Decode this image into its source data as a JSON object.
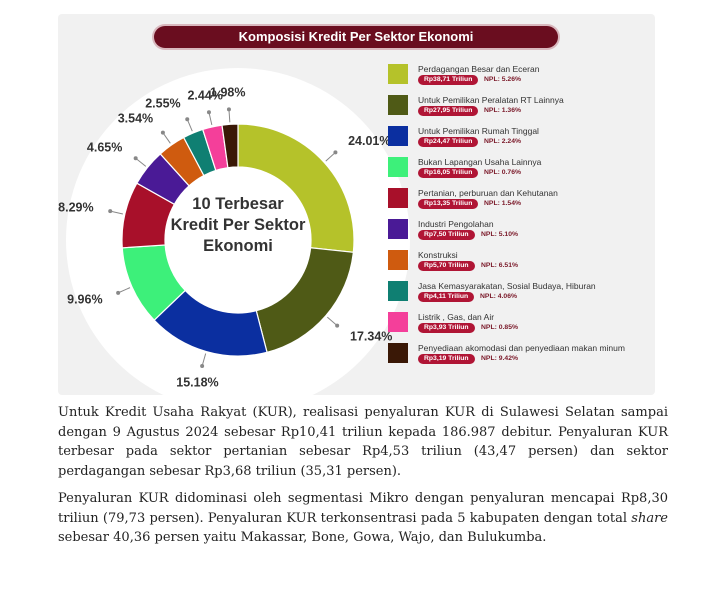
{
  "chart_data": {
    "type": "pie",
    "title": "Komposisi Kredit Per Sektor Ekonomi",
    "center_label": [
      "10 Terbesar",
      "Kredit Per Sektor",
      "Ekonomi"
    ],
    "slices": [
      {
        "label": "Perdagangan Besar dan Eceran",
        "value": 24.01,
        "display": "24.01%",
        "amount": "Rp38,71 Triliun",
        "npl": "NPL: 5.26%",
        "color": "#b5c22a"
      },
      {
        "label": "Untuk Pemilikan Peralatan RT Lainnya",
        "value": 17.34,
        "display": "17.34%",
        "amount": "Rp27,95 Triliun",
        "npl": "NPL: 1.36%",
        "color": "#4f5a16"
      },
      {
        "label": "Untuk Pemilikan Rumah Tinggal",
        "value": 15.18,
        "display": "15.18%",
        "amount": "Rp24,47 Triliun",
        "npl": "NPL: 2.24%",
        "color": "#0b2fa0"
      },
      {
        "label": "Bukan Lapangan Usaha Lainnya",
        "value": 9.96,
        "display": "9.96%",
        "amount": "Rp16,05 Triliun",
        "npl": "NPL: 0.76%",
        "color": "#3df07a"
      },
      {
        "label": "Pertanian, perburuan dan Kehutanan",
        "value": 8.29,
        "display": "8.29%",
        "amount": "Rp13,35 Triliun",
        "npl": "NPL: 1.54%",
        "color": "#a8102a"
      },
      {
        "label": "Industri Pengolahan",
        "value": 4.65,
        "display": "4.65%",
        "amount": "Rp7,50 Triliun",
        "npl": "NPL: 5.10%",
        "color": "#4a1a96"
      },
      {
        "label": "Konstruksi",
        "value": 3.54,
        "display": "3.54%",
        "amount": "Rp5,70 Triliun",
        "npl": "NPL: 6.51%",
        "color": "#cf5b0f"
      },
      {
        "label": "Jasa Kemasyarakatan, Sosial Budaya, Hiburan",
        "value": 2.55,
        "display": "2.55%",
        "amount": "Rp4,11 Triliun",
        "npl": "NPL: 4.06%",
        "color": "#0f7f72"
      },
      {
        "label": "Listrik , Gas, dan Air",
        "value": 2.44,
        "display": "2.44%",
        "amount": "Rp3,93 Triliun",
        "npl": "NPL: 0.85%",
        "color": "#f43f9a"
      },
      {
        "label": "Penyediaan akomodasi dan penyediaan makan minum",
        "value": 1.98,
        "display": "1.98%",
        "amount": "Rp3,19 Triliun",
        "npl": "NPL: 9.42%",
        "color": "#3a1806"
      }
    ]
  },
  "body": {
    "p1": "Untuk Kredit Usaha Rakyat (KUR), realisasi penyaluran KUR di Sulawesi Selatan sampai dengan 9 Agustus 2024 sebesar Rp10,41 triliun kepada 186.987 debitur. Penyaluran KUR terbesar pada sektor pertanian sebesar Rp4,53 triliun (43,47 persen) dan sektor perdagangan sebesar Rp3,68 triliun (35,31 persen).",
    "p2_before": "Penyaluran KUR didominasi oleh segmentasi Mikro dengan penyaluran mencapai Rp8,30 triliun (79,73 persen). Penyaluran KUR terkonsentrasi pada 5 kabupaten dengan total ",
    "p2_italic": "share",
    "p2_after": " sebesar 40,36 persen yaitu Makassar, Bone, Gowa, Wajo, dan Bulukumba."
  }
}
